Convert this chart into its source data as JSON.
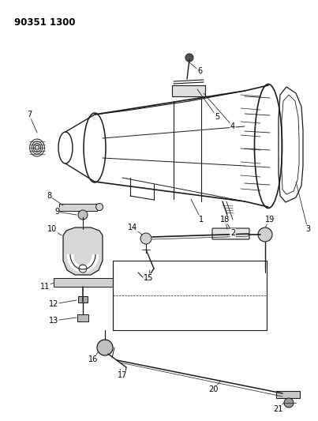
{
  "title": "90351 1300",
  "bg_color": "#ffffff",
  "line_color": "#1a1a1a",
  "figsize": [
    4.03,
    5.33
  ],
  "dpi": 100,
  "title_fontsize": 8.5,
  "label_fontsize": 7
}
